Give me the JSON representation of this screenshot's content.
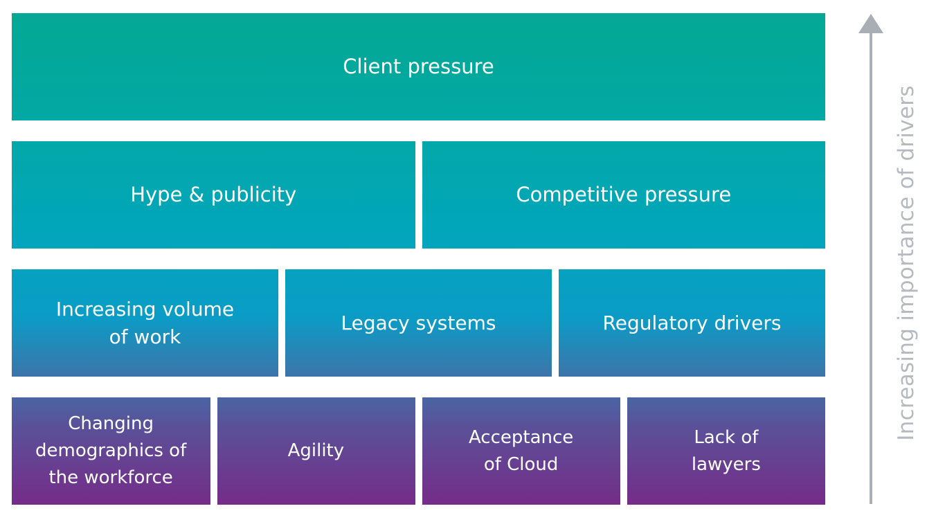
{
  "rows": [
    {
      "items": [
        "Client pressure"
      ]
    },
    {
      "items": [
        "Hype & publicity",
        "Competitive pressure"
      ]
    },
    {
      "items": [
        "Increasing volume\nof work",
        "Legacy systems",
        "Regulatory drivers"
      ]
    },
    {
      "items": [
        "Changing\ndemographics of\nthe workforce",
        "Agility",
        "Acceptance\nof Cloud",
        "Lack of\nlawyers"
      ]
    }
  ],
  "axis": {
    "label": "Increasing importance of drivers",
    "color": "#a9adb4"
  },
  "colors": {
    "top": "#04a894",
    "middle": "#01a6bb",
    "bottom": "#752c88"
  }
}
